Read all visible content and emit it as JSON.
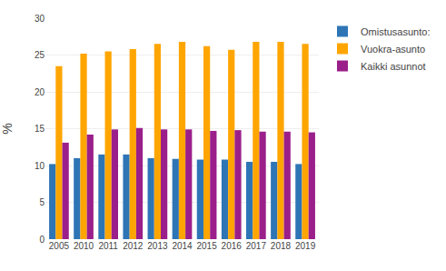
{
  "chart_data": {
    "type": "bar",
    "categories": [
      "2005",
      "2010",
      "2011",
      "2012",
      "2013",
      "2014",
      "2015",
      "2016",
      "2017",
      "2018",
      "2019"
    ],
    "series": [
      {
        "name": "Omistusasunto:",
        "color": "#2E75B6",
        "values": [
          10.2,
          11.0,
          11.5,
          11.5,
          11.0,
          10.9,
          10.8,
          10.8,
          10.5,
          10.5,
          10.2
        ]
      },
      {
        "name": "Vuokra-asunto",
        "color": "#FFA500",
        "values": [
          23.5,
          25.2,
          25.5,
          25.8,
          26.5,
          26.8,
          26.2,
          25.7,
          26.8,
          26.8,
          26.5
        ]
      },
      {
        "name": "Kaikki asunnot",
        "color": "#9B1F8A",
        "values": [
          13.1,
          14.2,
          14.9,
          15.1,
          14.9,
          14.9,
          14.7,
          14.8,
          14.6,
          14.6,
          14.5
        ]
      }
    ],
    "y_label": "%",
    "ylim": [
      0,
      30
    ],
    "yticks": [
      0,
      5,
      10,
      15,
      20,
      25,
      30
    ],
    "grid": true,
    "legend": "right"
  }
}
